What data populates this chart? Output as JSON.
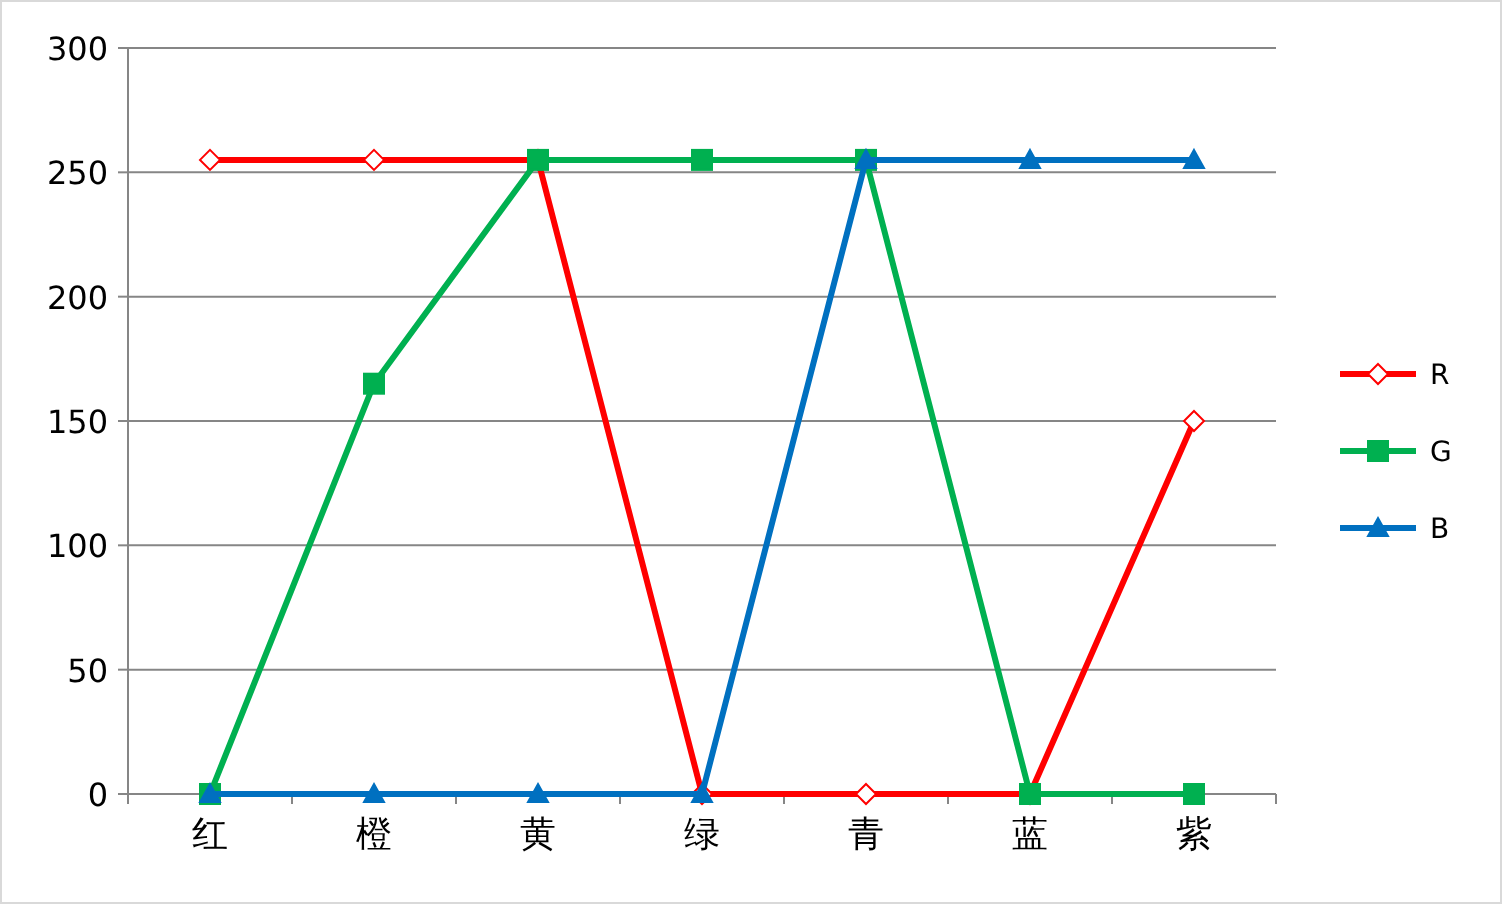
{
  "chart_data": {
    "type": "line",
    "categories": [
      "红",
      "橙",
      "黄",
      "绿",
      "青",
      "蓝",
      "紫"
    ],
    "series": [
      {
        "name": "R",
        "color": "#ff0000",
        "marker": "diamond",
        "values": [
          255,
          255,
          255,
          0,
          0,
          0,
          150
        ]
      },
      {
        "name": "G",
        "color": "#00b050",
        "marker": "square",
        "values": [
          0,
          165,
          255,
          255,
          255,
          0,
          0
        ]
      },
      {
        "name": "B",
        "color": "#0070c0",
        "marker": "triangle",
        "values": [
          0,
          0,
          0,
          0,
          255,
          255,
          255
        ]
      }
    ],
    "ylim": [
      0,
      300
    ],
    "yticks": [
      0,
      50,
      100,
      150,
      200,
      250,
      300
    ],
    "grid": "y",
    "legend": "right",
    "line_style": "solid"
  }
}
